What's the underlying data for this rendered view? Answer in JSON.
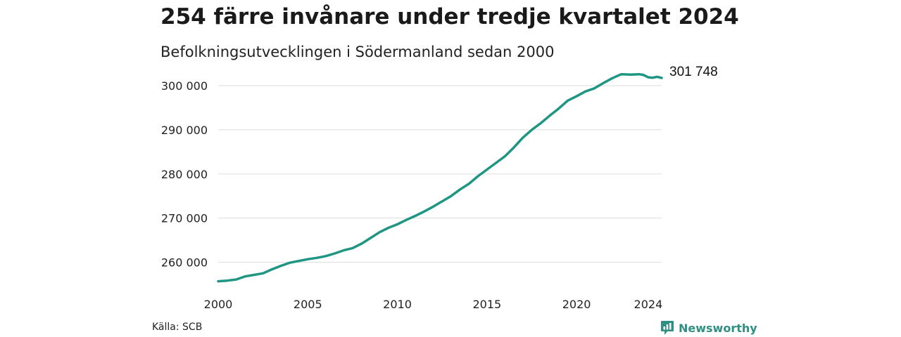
{
  "title": "254 färre invånare under tredje kvartalet 2024",
  "subtitle": "Befolkningsutvecklingen i Södermanland sedan 2000",
  "source": "Källa: SCB",
  "brand": {
    "name": "Newsworthy",
    "icon": "newsworthy-logo-icon"
  },
  "colors": {
    "line": "#1f9683",
    "grid": "#dddddd",
    "brand": "#2f8f82"
  },
  "chart_data": {
    "type": "line",
    "title": "",
    "xlabel": "",
    "ylabel": "",
    "ylim": [
      255000,
      303500
    ],
    "xlim": [
      2000,
      2024.75
    ],
    "grid": "horizontal",
    "yticks": [
      260000,
      270000,
      280000,
      290000,
      300000
    ],
    "ytick_labels": [
      "260 000",
      "270 000",
      "280 000",
      "290 000",
      "300 000"
    ],
    "xticks": [
      2000,
      2005,
      2010,
      2015,
      2020,
      2024
    ],
    "xtick_labels": [
      "2000",
      "2005",
      "2010",
      "2015",
      "2020",
      "2024"
    ],
    "end_label": "301 748",
    "series": [
      {
        "values": [
          {
            "x": 2000.0,
            "y": 255700
          },
          {
            "x": 2000.5,
            "y": 255850
          },
          {
            "x": 2001.0,
            "y": 256100
          },
          {
            "x": 2001.5,
            "y": 256800
          },
          {
            "x": 2002.0,
            "y": 257150
          },
          {
            "x": 2002.5,
            "y": 257500
          },
          {
            "x": 2003.0,
            "y": 258400
          },
          {
            "x": 2003.5,
            "y": 259200
          },
          {
            "x": 2004.0,
            "y": 259900
          },
          {
            "x": 2004.5,
            "y": 260300
          },
          {
            "x": 2005.0,
            "y": 260700
          },
          {
            "x": 2005.5,
            "y": 261000
          },
          {
            "x": 2006.0,
            "y": 261400
          },
          {
            "x": 2006.5,
            "y": 262000
          },
          {
            "x": 2007.0,
            "y": 262700
          },
          {
            "x": 2007.5,
            "y": 263200
          },
          {
            "x": 2008.0,
            "y": 264200
          },
          {
            "x": 2008.5,
            "y": 265500
          },
          {
            "x": 2009.0,
            "y": 266800
          },
          {
            "x": 2009.5,
            "y": 267800
          },
          {
            "x": 2010.0,
            "y": 268600
          },
          {
            "x": 2010.5,
            "y": 269600
          },
          {
            "x": 2011.0,
            "y": 270500
          },
          {
            "x": 2011.5,
            "y": 271500
          },
          {
            "x": 2012.0,
            "y": 272600
          },
          {
            "x": 2012.5,
            "y": 273800
          },
          {
            "x": 2013.0,
            "y": 275000
          },
          {
            "x": 2013.5,
            "y": 276500
          },
          {
            "x": 2014.0,
            "y": 277800
          },
          {
            "x": 2014.5,
            "y": 279500
          },
          {
            "x": 2015.0,
            "y": 281000
          },
          {
            "x": 2015.5,
            "y": 282500
          },
          {
            "x": 2016.0,
            "y": 284000
          },
          {
            "x": 2016.5,
            "y": 286000
          },
          {
            "x": 2017.0,
            "y": 288200
          },
          {
            "x": 2017.5,
            "y": 290000
          },
          {
            "x": 2018.0,
            "y": 291500
          },
          {
            "x": 2018.5,
            "y": 293200
          },
          {
            "x": 2019.0,
            "y": 294800
          },
          {
            "x": 2019.5,
            "y": 296600
          },
          {
            "x": 2020.0,
            "y": 297600
          },
          {
            "x": 2020.5,
            "y": 298700
          },
          {
            "x": 2021.0,
            "y": 299400
          },
          {
            "x": 2021.5,
            "y": 300600
          },
          {
            "x": 2022.0,
            "y": 301700
          },
          {
            "x": 2022.5,
            "y": 302600
          },
          {
            "x": 2023.0,
            "y": 302500
          },
          {
            "x": 2023.5,
            "y": 302600
          },
          {
            "x": 2023.75,
            "y": 302400
          },
          {
            "x": 2024.0,
            "y": 301900
          },
          {
            "x": 2024.25,
            "y": 301800
          },
          {
            "x": 2024.5,
            "y": 302000
          },
          {
            "x": 2024.75,
            "y": 301748
          }
        ]
      }
    ]
  }
}
